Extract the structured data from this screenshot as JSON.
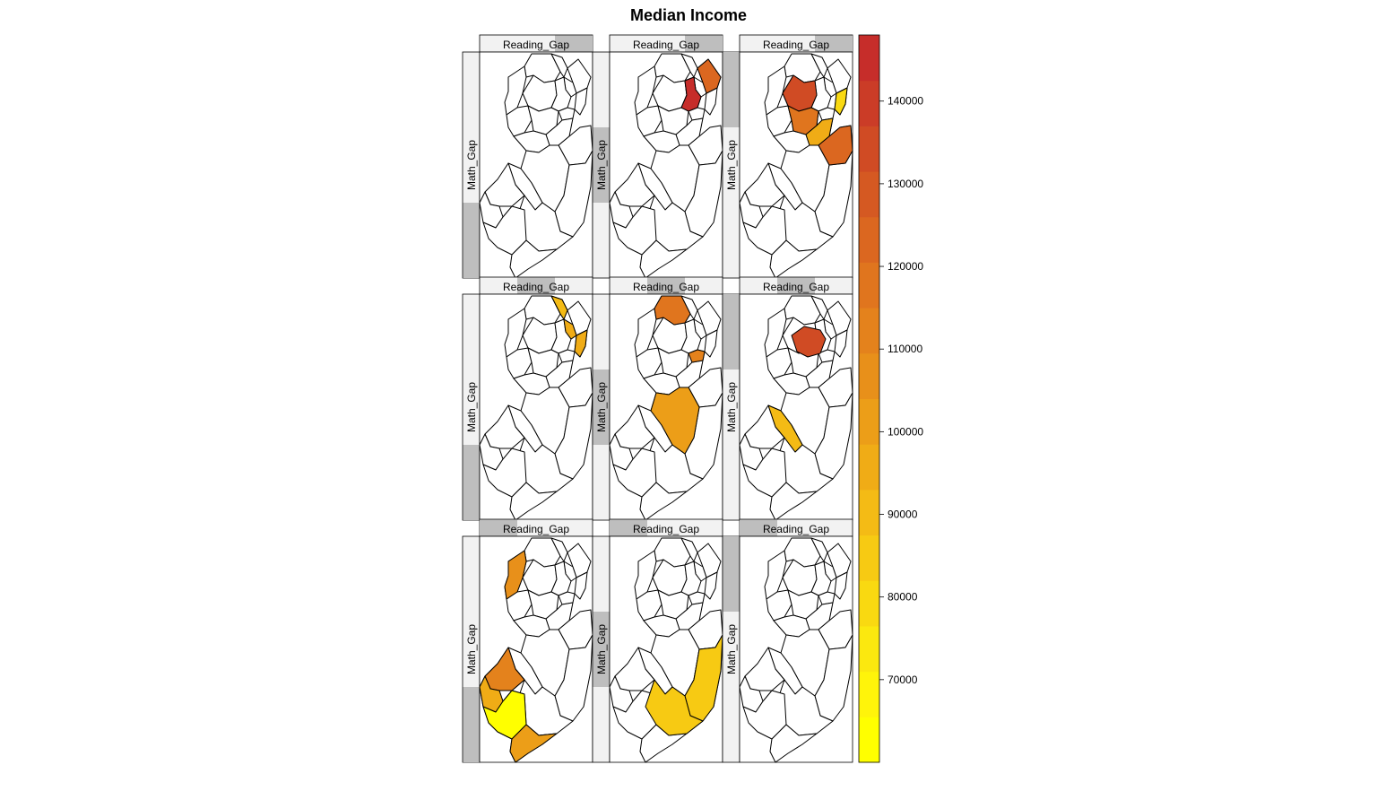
{
  "title": "Median Income",
  "panel_strip_label": "Reading_Gap",
  "panel_side_label": "Math_Gap",
  "colors": {
    "county_empty": "#ffffff",
    "strip_bg": "#f2f2f2",
    "strip_level": "#bebebe",
    "outline": "#000000"
  },
  "panels": [
    {
      "row": 0,
      "col": 0,
      "reading_level": 3,
      "math_level": 1,
      "highlighted": []
    },
    {
      "row": 0,
      "col": 1,
      "reading_level": 3,
      "math_level": 2,
      "highlighted": [
        {
          "county": "essex",
          "income": 144000
        },
        {
          "county": "bergen-east",
          "income": 122000
        }
      ]
    },
    {
      "row": 0,
      "col": 2,
      "reading_level": 3,
      "math_level": 3,
      "highlighted": [
        {
          "county": "morris",
          "income": 136000
        },
        {
          "county": "somerset",
          "income": 118000
        },
        {
          "county": "middlesex",
          "income": 98000
        },
        {
          "county": "monmouth",
          "income": 122000
        },
        {
          "county": "hudson",
          "income": 78000
        }
      ]
    },
    {
      "row": 1,
      "col": 0,
      "reading_level": 2,
      "math_level": 1,
      "highlighted": [
        {
          "county": "passaic-south",
          "income": 90000
        },
        {
          "county": "bergen-south",
          "income": 95000
        },
        {
          "county": "hudson",
          "income": 98000
        }
      ]
    },
    {
      "row": 1,
      "col": 1,
      "reading_level": 2,
      "math_level": 2,
      "highlighted": [
        {
          "county": "sussex",
          "income": 115000
        },
        {
          "county": "union",
          "income": 110000
        },
        {
          "county": "burlington",
          "income": 102000
        }
      ]
    },
    {
      "row": 1,
      "col": 2,
      "reading_level": 2,
      "math_level": 3,
      "highlighted": [
        {
          "county": "essex-morris",
          "income": 136000
        },
        {
          "county": "camden",
          "income": 88000
        }
      ]
    },
    {
      "row": 2,
      "col": 0,
      "reading_level": 1,
      "math_level": 1,
      "highlighted": [
        {
          "county": "warren",
          "income": 108000
        },
        {
          "county": "gloucester",
          "income": 110000
        },
        {
          "county": "salem",
          "income": 96000
        },
        {
          "county": "cumberland",
          "income": 62000
        },
        {
          "county": "cape-may",
          "income": 100000
        }
      ]
    },
    {
      "row": 2,
      "col": 1,
      "reading_level": 1,
      "math_level": 2,
      "highlighted": [
        {
          "county": "ocean",
          "income": 84000
        },
        {
          "county": "atlantic",
          "income": 86000
        }
      ]
    },
    {
      "row": 2,
      "col": 2,
      "reading_level": 1,
      "math_level": 3,
      "highlighted": []
    }
  ],
  "legend": {
    "min": 60000,
    "max": 148000,
    "ticks": [
      "70000",
      "80000",
      "90000",
      "100000",
      "110000",
      "120000",
      "130000",
      "140000"
    ],
    "tick_values": [
      70000,
      80000,
      90000,
      100000,
      110000,
      120000,
      130000,
      140000
    ],
    "bins": [
      "#ffff00",
      "#fff40a",
      "#fbe80f",
      "#f9d911",
      "#f7ca13",
      "#f4bb15",
      "#f0ac16",
      "#ec9e18",
      "#e8901a",
      "#e4821c",
      "#e0751e",
      "#db6720",
      "#d55922",
      "#d04b24",
      "#cb3c27",
      "#c62d2a"
    ]
  }
}
